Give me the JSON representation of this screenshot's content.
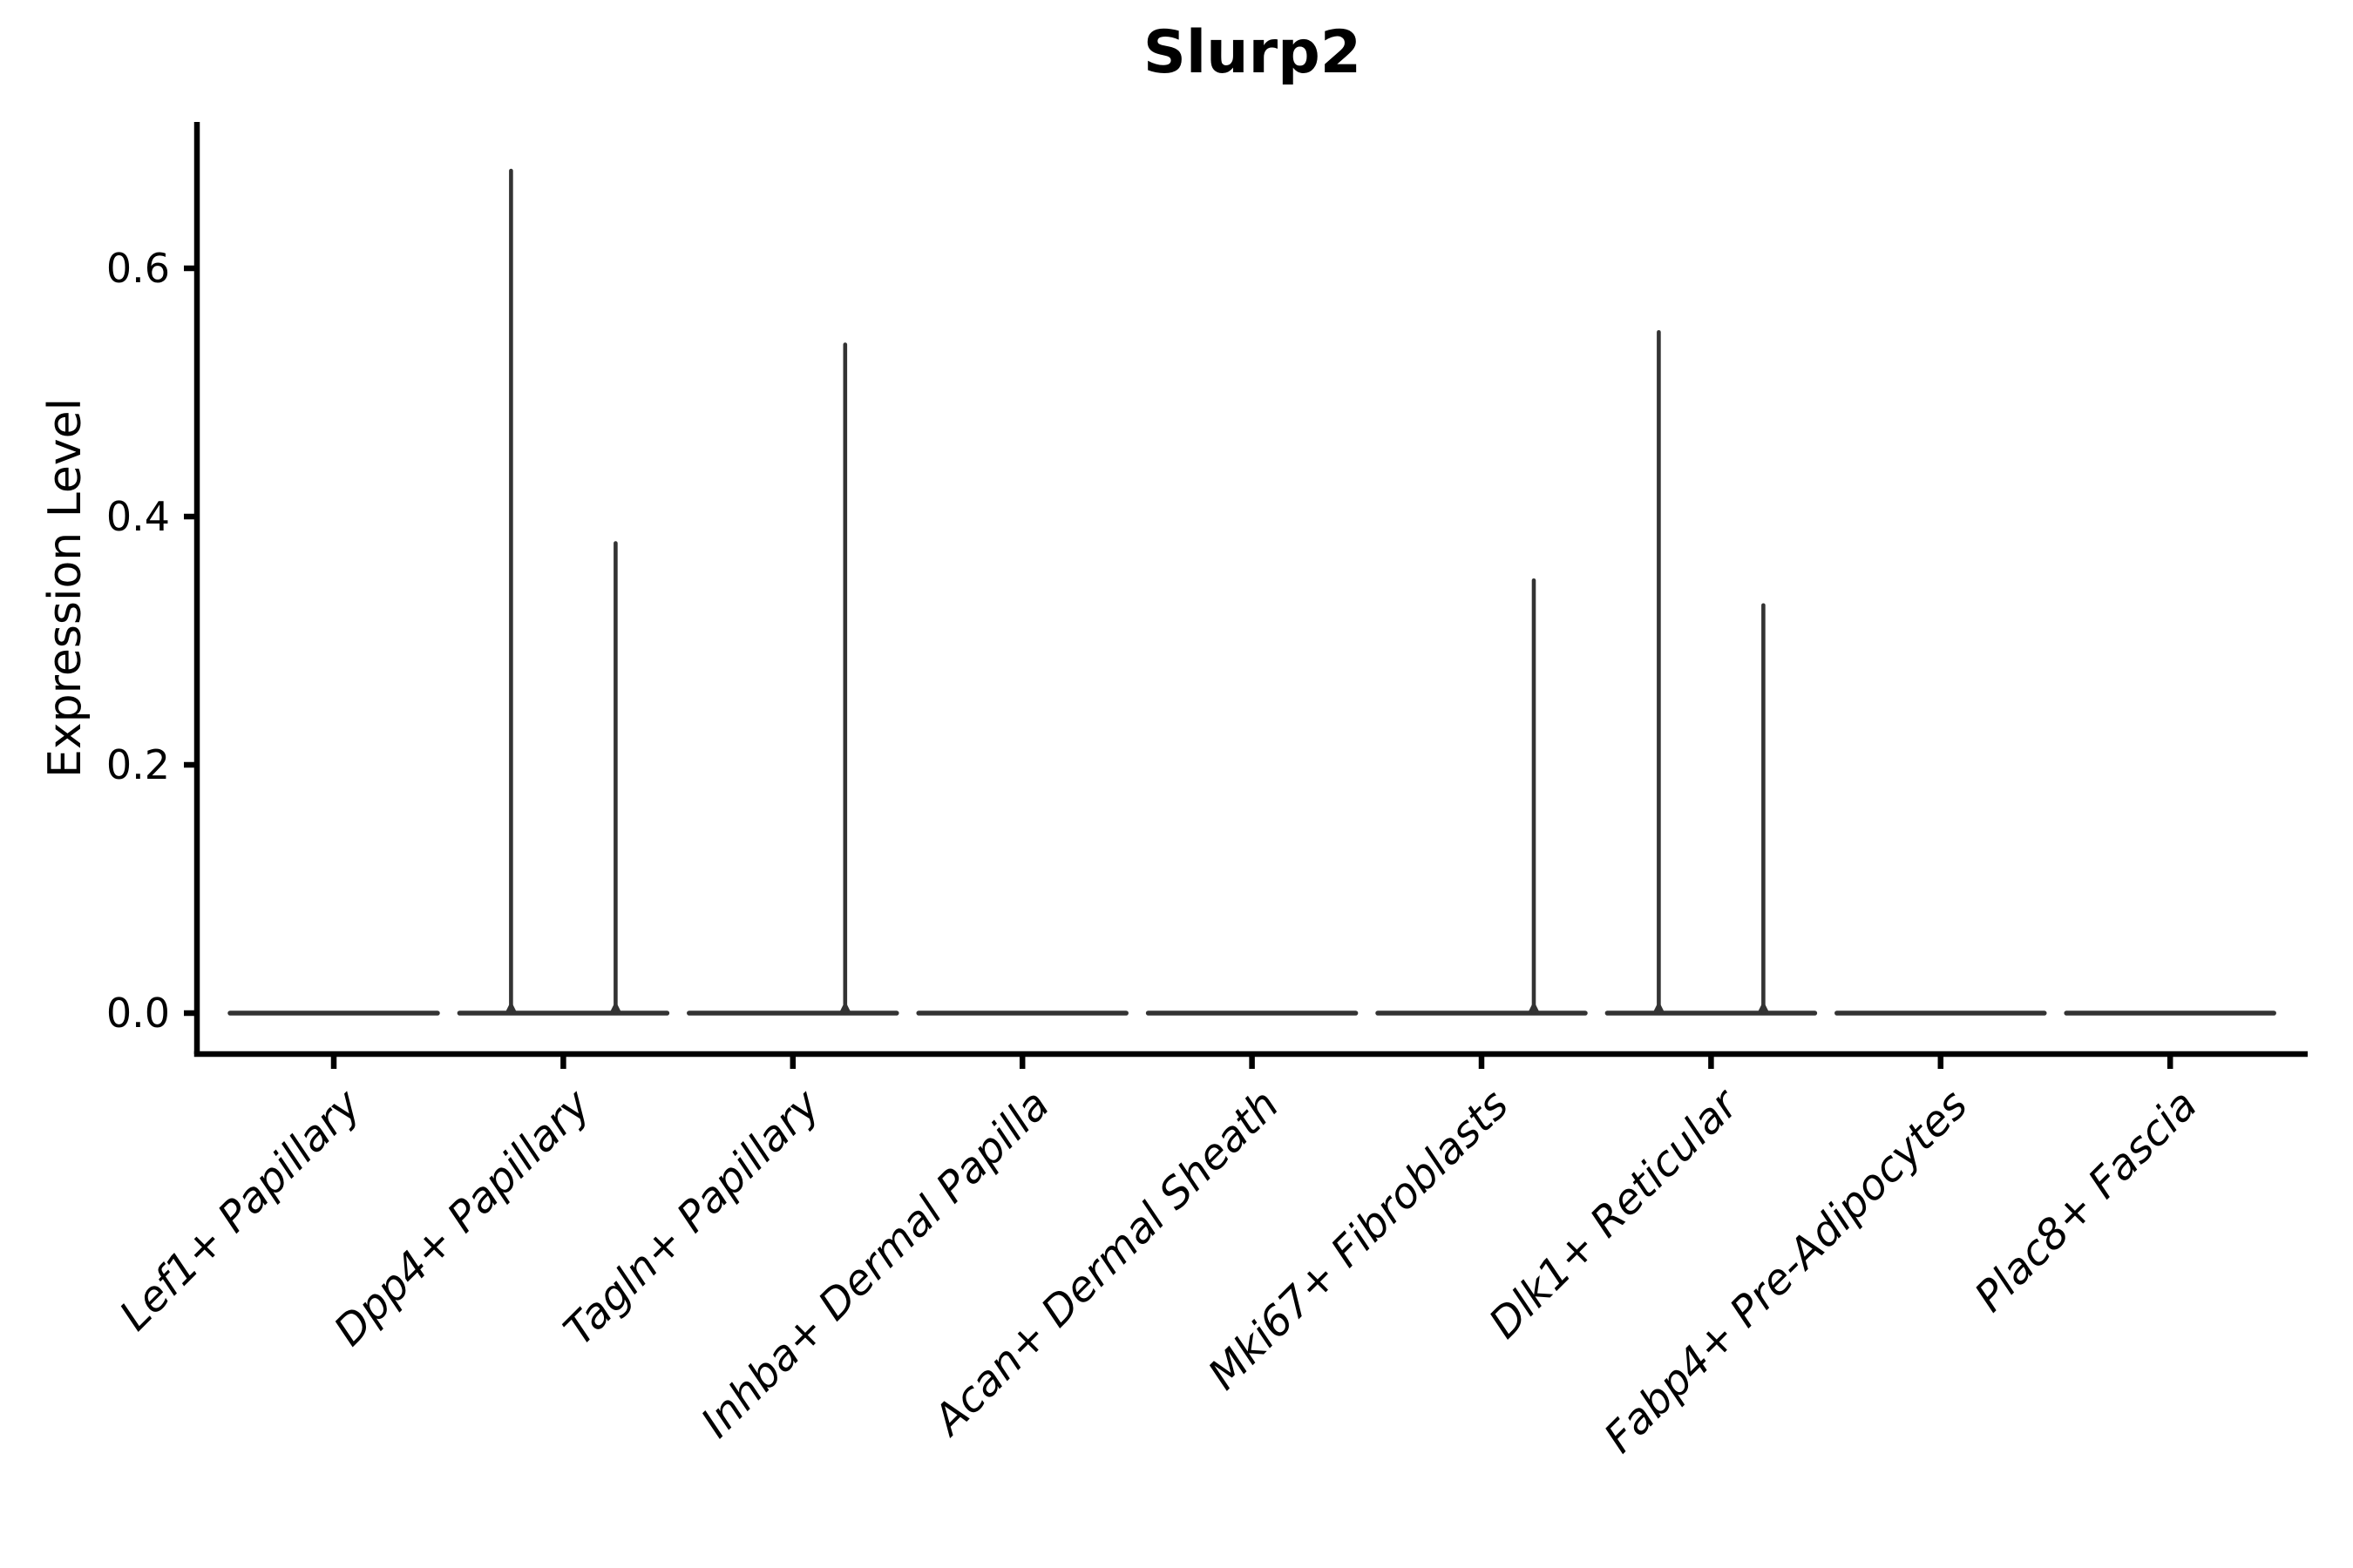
{
  "chart_data": {
    "type": "violin",
    "title": "Slurp2",
    "ylabel": "Expression Level",
    "xlabel": "",
    "yticks": [
      0.0,
      0.2,
      0.4,
      0.6
    ],
    "ytick_labels": [
      "0.0",
      "0.2",
      "0.4",
      "0.6"
    ],
    "ylim": [
      -0.03,
      0.72
    ],
    "grid": false,
    "legend": "none",
    "categories": [
      "Lef1+ Papillary",
      "Dpp4+ Papillary",
      "Tagln+ Papillary",
      "Inhba+ Dermal Papilla",
      "Acan+ Dermal Sheath",
      "Mki67+ Fibroblasts",
      "Dlk1+ Reticular",
      "Fabp4+ Pre-Adipocytes",
      "Plac8+ Fascia"
    ],
    "violins": [
      {
        "category": "Lef1+ Papillary",
        "baseline_value": 0,
        "spikes": []
      },
      {
        "category": "Dpp4+ Papillary",
        "baseline_value": 0,
        "spikes": [
          {
            "side": "left",
            "max": 0.68
          },
          {
            "side": "right",
            "max": 0.38
          }
        ]
      },
      {
        "category": "Tagln+ Papillary",
        "baseline_value": 0,
        "spikes": [
          {
            "side": "right",
            "max": 0.54
          }
        ]
      },
      {
        "category": "Inhba+ Dermal Papilla",
        "baseline_value": 0,
        "spikes": []
      },
      {
        "category": "Acan+ Dermal Sheath",
        "baseline_value": 0,
        "spikes": []
      },
      {
        "category": "Mki67+ Fibroblasts",
        "baseline_value": 0,
        "spikes": [
          {
            "side": "right",
            "max": 0.35
          }
        ]
      },
      {
        "category": "Dlk1+ Reticular",
        "baseline_value": 0,
        "spikes": [
          {
            "side": "left",
            "max": 0.55
          },
          {
            "side": "right",
            "max": 0.33
          }
        ]
      },
      {
        "category": "Fabp4+ Pre-Adipocytes",
        "baseline_value": 0,
        "spikes": []
      },
      {
        "category": "Plac8+ Fascia",
        "baseline_value": 0,
        "spikes": []
      }
    ],
    "colors": {
      "violin": "#333333",
      "axis": "#000000",
      "text": "#000000",
      "background": "#ffffff"
    }
  }
}
